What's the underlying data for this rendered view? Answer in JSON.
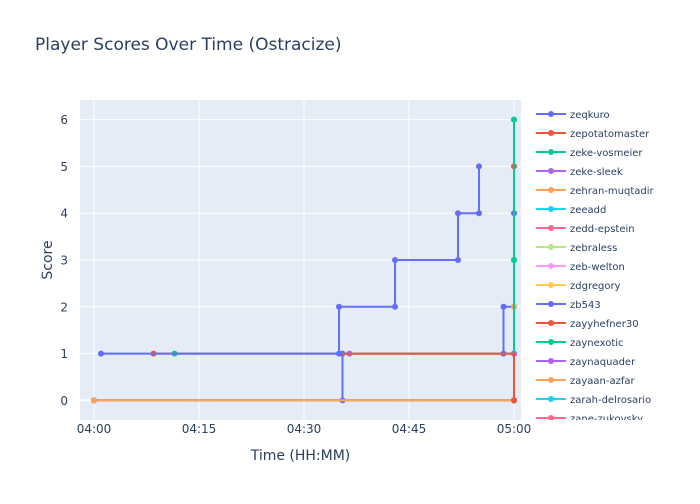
{
  "chart_data": {
    "type": "line",
    "title": "Player Scores Over Time (Ostracize)",
    "xlabel": "Time (HH:MM)",
    "ylabel": "Score",
    "x_unit": "HH:MM",
    "xlim": [
      "03:58",
      "05:01"
    ],
    "ylim": [
      -0.42,
      6.42
    ],
    "x_ticks": [
      "04:00",
      "04:15",
      "04:30",
      "04:45",
      "05:00"
    ],
    "y_ticks": [
      0,
      1,
      2,
      3,
      4,
      5,
      6
    ],
    "line_shape": "step",
    "grid": true,
    "legend_position": "right",
    "colors": {
      "plot_bg": "#E5ECF6",
      "grid": "#FFFFFF",
      "text": "#2A3F5F",
      "title": "#2A3F5F"
    },
    "series": [
      {
        "name": "zeqkuro",
        "color": "#636EFA",
        "x": [
          "04:01",
          "04:35",
          "04:35",
          "04:43",
          "04:43",
          "04:52",
          "04:52",
          "04:55",
          "04:55"
        ],
        "y": [
          1,
          1,
          2,
          2,
          3,
          3,
          4,
          4,
          5
        ]
      },
      {
        "name": "zepotatomaster",
        "color": "#EF553B",
        "x": [
          "04:08:30",
          "05:00"
        ],
        "y": [
          1,
          0
        ]
      },
      {
        "name": "zeke-vosmeier",
        "color": "#00CC96",
        "x": [
          "04:11:30",
          "05:00",
          "05:00"
        ],
        "y": [
          1,
          3,
          6
        ]
      },
      {
        "name": "zeke-sleek",
        "color": "#AB63FA",
        "x": [
          "04:36:30",
          "05:00"
        ],
        "y": [
          1,
          1
        ]
      },
      {
        "name": "zehran-muqtadir",
        "color": "#FFA15A",
        "x": [
          "04:00",
          "05:00"
        ],
        "y": [
          0,
          2
        ]
      },
      {
        "name": "zeeadd",
        "color": "#19D3F3",
        "x": [
          "04:00",
          "05:00"
        ],
        "y": [
          0,
          0
        ]
      },
      {
        "name": "zedd-epstein",
        "color": "#FF6692",
        "x": [
          "04:00",
          "05:00"
        ],
        "y": [
          0,
          0
        ]
      },
      {
        "name": "zebraless",
        "color": "#B6E880",
        "x": [
          "04:00",
          "05:00"
        ],
        "y": [
          0,
          0
        ]
      },
      {
        "name": "zeb-welton",
        "color": "#FF97FF",
        "x": [
          "04:00",
          "05:00"
        ],
        "y": [
          0,
          0
        ]
      },
      {
        "name": "zdgregory",
        "color": "#FECB52",
        "x": [
          "04:00",
          "05:00"
        ],
        "y": [
          0,
          0
        ]
      },
      {
        "name": "zb543",
        "color": "#636EFA",
        "x": [
          "04:00",
          "04:35:30",
          "04:35:30",
          "04:58:30",
          "04:58:30",
          "05:00",
          "05:00",
          "05:00"
        ],
        "y": [
          0,
          0,
          1,
          1,
          2,
          1,
          4,
          1
        ]
      },
      {
        "name": "zayyhefner30",
        "color": "#EF553B",
        "x": [
          "04:00",
          "05:00",
          "05:00"
        ],
        "y": [
          0,
          5,
          0
        ]
      },
      {
        "name": "zaynexotic",
        "color": "#00CC96",
        "x": [
          "04:00",
          "05:00",
          "05:00"
        ],
        "y": [
          0,
          6,
          3
        ]
      },
      {
        "name": "zaynaquader",
        "color": "#AB63FA",
        "x": [
          "04:00",
          "05:00"
        ],
        "y": [
          0,
          0
        ]
      },
      {
        "name": "zayaan-azfar",
        "color": "#FFA15A",
        "x": [
          "04:00",
          "05:00"
        ],
        "y": [
          0,
          0
        ]
      },
      {
        "name": "zarah-delrosario",
        "color": "#19D3F3",
        "x": [
          "04:00",
          "05:00"
        ],
        "y": [
          0,
          0
        ]
      },
      {
        "name": "zane-zukovsky",
        "color": "#FF6692",
        "x": [
          "04:00",
          "05:00"
        ],
        "y": [
          0,
          0
        ]
      }
    ]
  }
}
